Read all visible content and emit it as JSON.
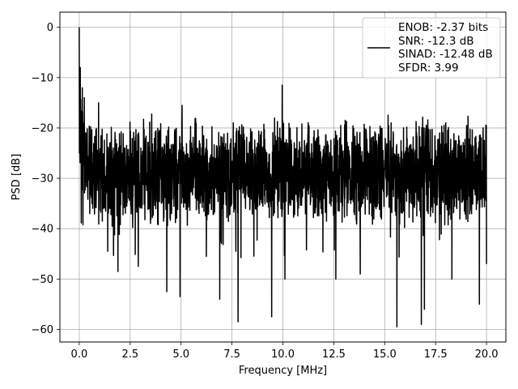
{
  "chart_data": {
    "type": "line",
    "xlabel": "Frequency [MHz]",
    "ylabel": "PSD [dB]",
    "xlim": [
      -0.95,
      20.95
    ],
    "ylim": [
      -62.5,
      3
    ],
    "xticks": [
      0.0,
      2.5,
      5.0,
      7.5,
      10.0,
      12.5,
      15.0,
      17.5,
      20.0
    ],
    "xtick_labels": [
      "0.0",
      "2.5",
      "5.0",
      "7.5",
      "10.0",
      "12.5",
      "15.0",
      "17.5",
      "20.0"
    ],
    "yticks": [
      0,
      -10,
      -20,
      -30,
      -40,
      -50,
      -60
    ],
    "ytick_labels": [
      "0",
      "−10",
      "−20",
      "−30",
      "−40",
      "−50",
      "−60"
    ],
    "grid": true,
    "legend_placement": "top-right",
    "series": [
      {
        "name": "ENOB: -2.37 bits\nSNR: -12.3 dB\nSINAD: -12.48 dB\nSFDR: 3.99",
        "legend_lines": [
          "ENOB: -2.37 bits",
          "SNR: -12.3 dB",
          "SINAD: -12.48 dB",
          "SFDR: 3.99"
        ],
        "color": "#000000",
        "x_range": [
          0,
          20
        ],
        "noise_floor_db": -29,
        "peaks": [
          {
            "x": 0.0,
            "y": 0
          },
          {
            "x": 0.05,
            "y": -8
          },
          {
            "x": 0.15,
            "y": -12
          },
          {
            "x": 0.25,
            "y": -14
          },
          {
            "x": 9.97,
            "y": -11.5
          },
          {
            "x": 5.05,
            "y": -15.5
          },
          {
            "x": 0.95,
            "y": -15
          },
          {
            "x": 1.4,
            "y": -15.5
          }
        ],
        "troughs": [
          {
            "x": 1.4,
            "y": -44.5
          },
          {
            "x": 1.9,
            "y": -48.5
          },
          {
            "x": 2.9,
            "y": -47.5
          },
          {
            "x": 4.3,
            "y": -52.5
          },
          {
            "x": 4.95,
            "y": -53.5
          },
          {
            "x": 6.9,
            "y": -54
          },
          {
            "x": 7.8,
            "y": -58.5
          },
          {
            "x": 9.45,
            "y": -57.5
          },
          {
            "x": 10.1,
            "y": -50
          },
          {
            "x": 12.6,
            "y": -50
          },
          {
            "x": 13.8,
            "y": -49
          },
          {
            "x": 15.6,
            "y": -59.5
          },
          {
            "x": 16.8,
            "y": -59
          },
          {
            "x": 16.95,
            "y": -56
          },
          {
            "x": 18.3,
            "y": -50
          },
          {
            "x": 19.65,
            "y": -55
          },
          {
            "x": 20.0,
            "y": -47
          }
        ]
      }
    ]
  }
}
